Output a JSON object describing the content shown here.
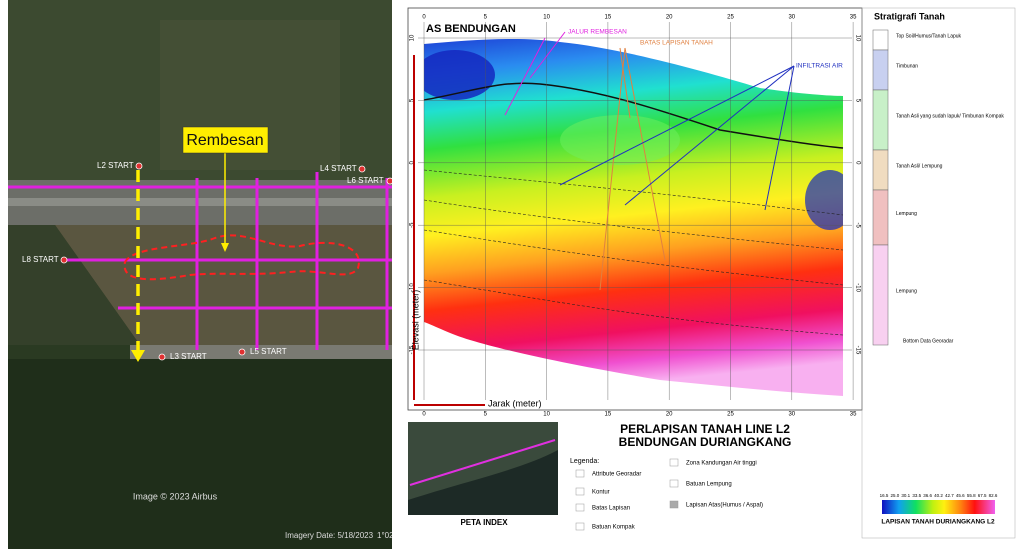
{
  "satellite": {
    "annotation": "Rembesan",
    "line_labels": [
      "L2 START",
      "L4 START",
      "L6 START",
      "L8 START",
      "L3 START",
      "L5 START"
    ],
    "credit": "Image © 2023 Airbus",
    "imagery_date": "Imagery Date: 5/18/2023",
    "coordinate": "1°02'"
  },
  "section": {
    "title": "AS BENDUNGAN",
    "annotations": [
      "JALUR REMBESAN",
      "BATAS LAPISAN TANAH",
      "INFILTRASI AIR"
    ],
    "x_ticks": [
      0,
      5,
      10,
      15,
      20,
      25,
      30,
      35
    ],
    "y_ticks": [
      10,
      5,
      0,
      -5,
      -10,
      -15
    ],
    "y_label": "Elevasi (meter)",
    "x_label": "Jarak (meter)"
  },
  "stratigraphy": {
    "title": "Stratigrafi Tanah",
    "layers": [
      "Top Soil/Humus/Tanah Lapuk",
      "Timbunan",
      "Tanah Asli yang sudah lapuk/ Timbunan Kompak",
      "Tanah Asli/ Lempung",
      "Lempung",
      "Lempung"
    ],
    "bottom": "Bottom Data Georadar"
  },
  "map_title": [
    "PERLAPISAN TANAH LINE L2",
    "BENDUNGAN DURIANGKANG"
  ],
  "legend": {
    "title": "Legenda:",
    "items": [
      "Attribute Georadar",
      "Kontur",
      "Batas Lapisan",
      "Batuan Kompak",
      "Zona Kandungan Air tinggi",
      "Batuan Lempung",
      "Lapisan Atas(Humus / Aspal)"
    ]
  },
  "index_map": {
    "title": "PETA INDEX"
  },
  "color_scale": {
    "values": [
      16.5,
      25.0,
      30.1,
      33.5,
      36.6,
      40.2,
      42.7,
      45.6,
      55.8,
      67.5,
      82.6
    ],
    "value_labels": [
      "16.5",
      "25.0",
      "30.1",
      "33.5",
      "36.6",
      "40.2",
      "42.7",
      "45.6",
      "55.8",
      "67.5",
      "82.6"
    ],
    "title": "LAPISAN TANAH DURIANGKANG L2"
  }
}
